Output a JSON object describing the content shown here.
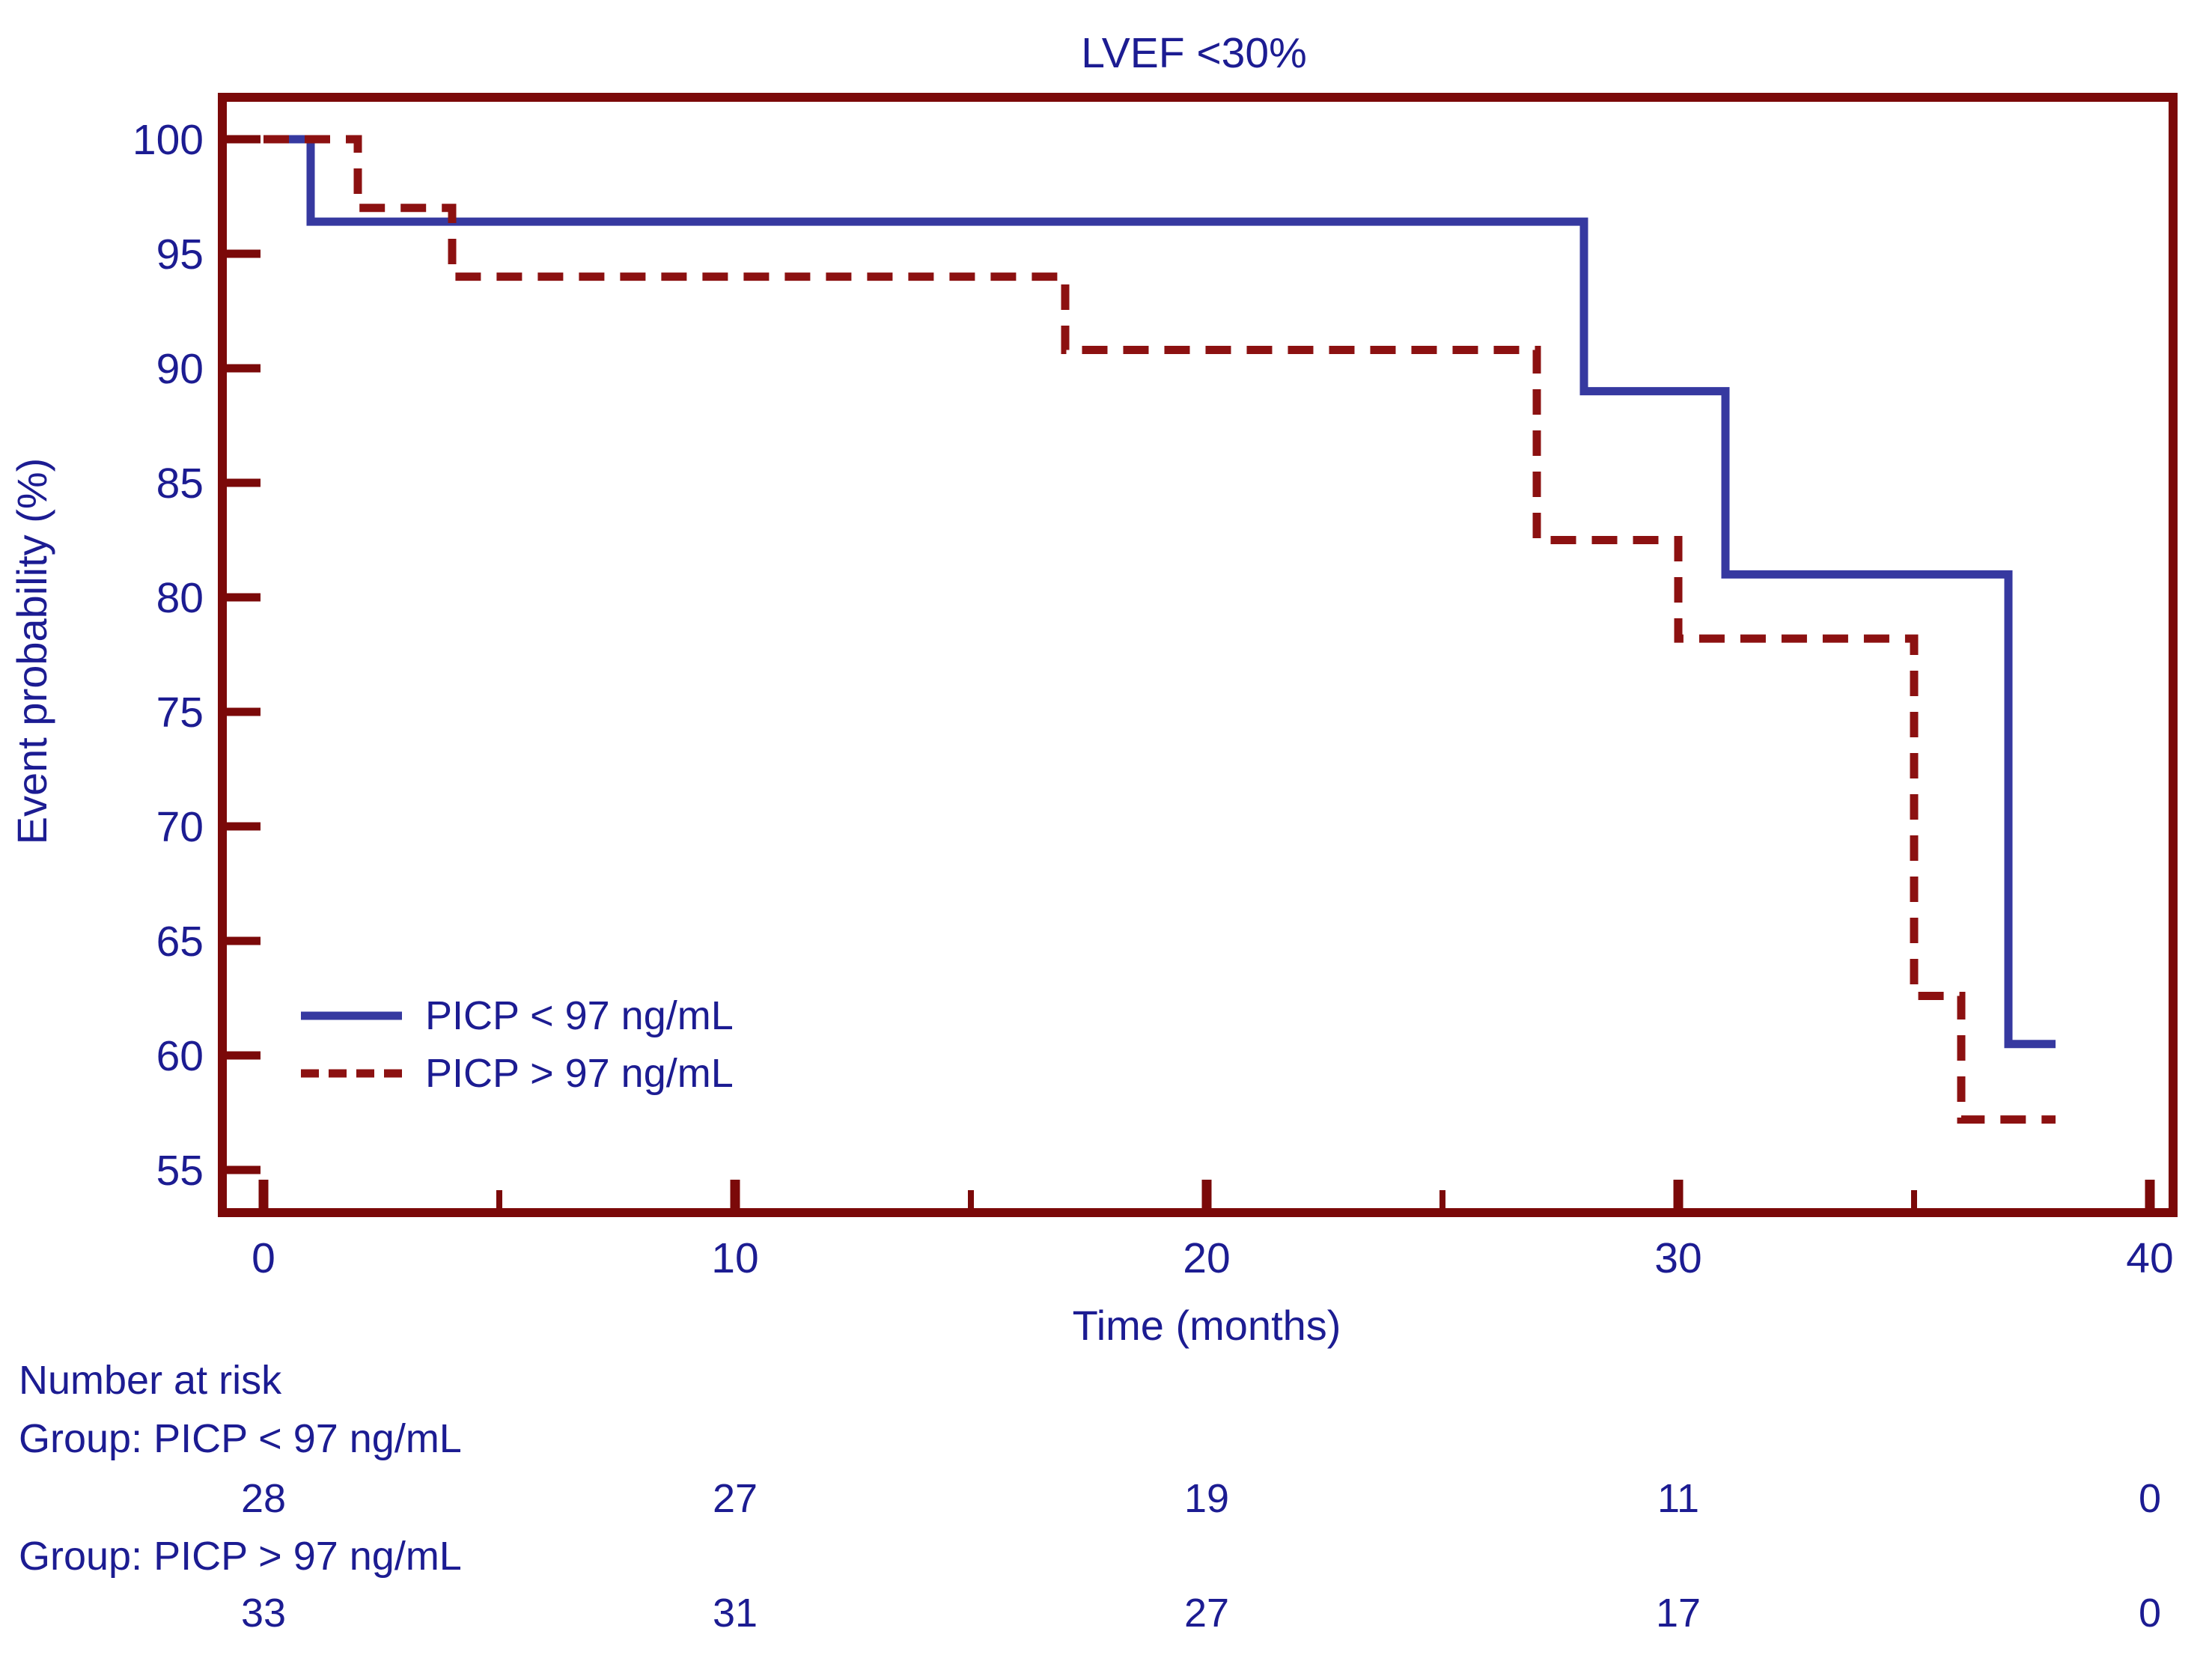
{
  "title": "LVEF <30%",
  "colors": {
    "text_navy": "#1c1c92",
    "axis_maroon": "#7b0909",
    "curve_picp_low_blue": "#3639a0",
    "curve_picp_high_red": "#8c1111",
    "background": "#ffffff"
  },
  "chart_data": {
    "type": "line",
    "subtype": "kaplan-meier-step",
    "title": "LVEF <30%",
    "xlabel": "Time (months)",
    "ylabel": "Event probability (%)",
    "xlim": [
      0,
      40
    ],
    "ylim": [
      55,
      100
    ],
    "grid": "off",
    "x_major_ticks": [
      0,
      10,
      20,
      30,
      40
    ],
    "x_minor_ticks": [
      5,
      15,
      25,
      35
    ],
    "y_ticks": [
      100,
      95,
      90,
      85,
      80,
      75,
      70,
      65,
      60,
      55
    ],
    "legend_position": "inside-lower-left",
    "legend": [
      {
        "label": "PICP < 97 ng/mL",
        "line_style": "solid",
        "color": "#3639a0"
      },
      {
        "label": "PICP > 97 ng/mL",
        "line_style": "dashed",
        "color": "#8c1111"
      }
    ],
    "series": [
      {
        "name": "PICP < 97 ng/mL",
        "line_style": "solid",
        "color": "#3639a0",
        "points": [
          [
            0,
            100
          ],
          [
            1,
            100
          ],
          [
            1,
            96.4
          ],
          [
            28,
            96.4
          ],
          [
            28,
            89
          ],
          [
            31,
            89
          ],
          [
            31,
            81
          ],
          [
            37,
            81
          ],
          [
            37,
            60.5
          ],
          [
            38,
            60.5
          ]
        ]
      },
      {
        "name": "PICP > 97 ng/mL",
        "line_style": "dashed",
        "color": "#8c1111",
        "points": [
          [
            0,
            100
          ],
          [
            2,
            100
          ],
          [
            2,
            97
          ],
          [
            4,
            97
          ],
          [
            4,
            94
          ],
          [
            17,
            94
          ],
          [
            17,
            90.8
          ],
          [
            27,
            90.8
          ],
          [
            27,
            82.5
          ],
          [
            30,
            82.5
          ],
          [
            30,
            78.2
          ],
          [
            35,
            78.2
          ],
          [
            35,
            62.6
          ],
          [
            36,
            62.6
          ],
          [
            36,
            57.2
          ],
          [
            38,
            57.2
          ]
        ]
      }
    ],
    "number_at_risk": {
      "heading": "Number at risk",
      "times": [
        0,
        10,
        20,
        30,
        40
      ],
      "groups": [
        {
          "label": "Group: PICP < 97 ng/mL",
          "counts": [
            28,
            27,
            19,
            11,
            0
          ]
        },
        {
          "label": "Group: PICP > 97 ng/mL",
          "counts": [
            33,
            31,
            27,
            17,
            0
          ]
        }
      ]
    }
  }
}
